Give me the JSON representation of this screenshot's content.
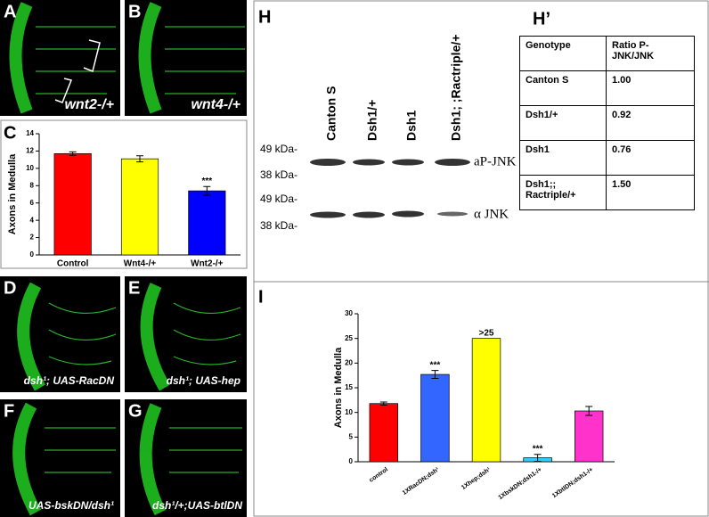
{
  "panel_labels": [
    {
      "letter": "A",
      "caption": "wnt2-/+"
    },
    {
      "letter": "B",
      "caption": "wnt4-/+"
    },
    {
      "letter": "C"
    },
    {
      "letter": "D",
      "caption": "dsh¹; UAS-RacDN"
    },
    {
      "letter": "E",
      "caption": "dsh¹; UAS-hep"
    },
    {
      "letter": "F",
      "caption": "UAS-bskDN/dsh¹"
    },
    {
      "letter": "G",
      "caption": "dsh¹/+;UAS-btlDN"
    },
    {
      "letter": "H"
    },
    {
      "letter": "H’"
    },
    {
      "letter": "I"
    }
  ],
  "blot": {
    "lanes": [
      "Canton S",
      "Dsh1/+",
      "Dsh1",
      "Dsh1; ;Ractriple/+"
    ],
    "markers": [
      "49 kDa-",
      "38 kDa-",
      "49 kDa-",
      "38 kDa-"
    ],
    "bands": [
      "aP-JNK",
      "α JNK"
    ]
  },
  "table": {
    "header": [
      "Genotype",
      "Ratio P-JNK/JNK"
    ],
    "rows": [
      [
        "Canton S",
        "1.00"
      ],
      [
        "Dsh1/+",
        "0.92"
      ],
      [
        "Dsh1",
        "0.76"
      ],
      [
        "Dsh1;; Ractriple/+",
        "1.50"
      ]
    ]
  },
  "chart_data": [
    {
      "type": "bar",
      "y_label": "Axons in Medulla",
      "categories": [
        "Control",
        "Wnt4-/+",
        "Wnt2-/+"
      ],
      "values": [
        11.7,
        11.1,
        7.4
      ],
      "errors": [
        0.2,
        0.35,
        0.5
      ],
      "colors": [
        "#ff0000",
        "#ffff00",
        "#0000ff"
      ],
      "markers": [
        null,
        null,
        "***"
      ],
      "ylim": [
        0,
        14
      ],
      "yticks": [
        0,
        2,
        4,
        6,
        8,
        10,
        12,
        14
      ],
      "rotate_labels": false
    },
    {
      "type": "bar",
      "y_label": "Axons in Medulla",
      "categories": [
        "control",
        "1XRacDN;dsh¹",
        "1Xhep;dsh¹",
        "1XbskDN;dsh1-/+",
        "1XbtlDN;dsh1-/+"
      ],
      "values": [
        11.8,
        17.7,
        25,
        0.8,
        10.3
      ],
      "errors": [
        0.3,
        0.8,
        null,
        0.7,
        0.9
      ],
      "colors": [
        "#ff0000",
        "#3366ff",
        "#ffff00",
        "#33ccff",
        "#ff33cc"
      ],
      "markers": [
        null,
        "***",
        ">25",
        "***",
        null
      ],
      "ylim": [
        0,
        30
      ],
      "yticks": [
        0,
        5,
        10,
        15,
        20,
        25,
        30
      ],
      "rotate_labels": true
    }
  ]
}
